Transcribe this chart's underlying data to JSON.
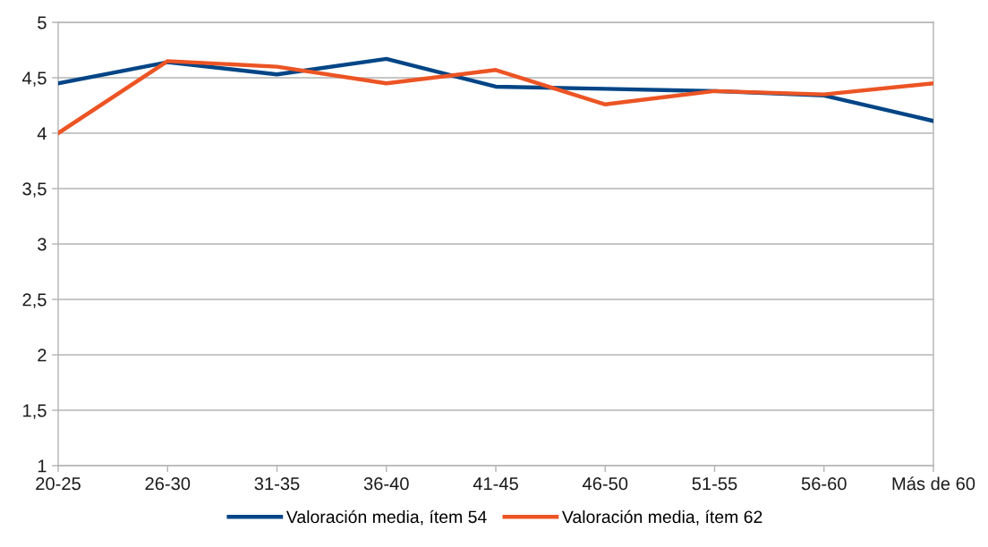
{
  "chart_data": {
    "type": "line",
    "categories": [
      "20-25",
      "26-30",
      "31-35",
      "36-40",
      "41-45",
      "46-50",
      "51-55",
      "56-60",
      "Más de 60"
    ],
    "series": [
      {
        "name": "Valoración media, ítem 54",
        "color": "#004586",
        "values": [
          4.45,
          4.64,
          4.53,
          4.67,
          4.42,
          4.4,
          4.38,
          4.34,
          4.11
        ]
      },
      {
        "name": "Valoración media, ítem 62",
        "color": "#ec5424",
        "values": [
          4.0,
          4.65,
          4.6,
          4.45,
          4.57,
          4.26,
          4.38,
          4.35,
          4.45
        ]
      }
    ],
    "ylim": [
      1,
      5
    ],
    "yticks": [
      1,
      {
        "value": 1.5,
        "label": "1,5"
      },
      2,
      {
        "value": 2.5,
        "label": "2,5"
      },
      3,
      {
        "value": 3.5,
        "label": "3,5"
      },
      4,
      {
        "value": 4.5,
        "label": "4,5"
      },
      5
    ],
    "grid": "y",
    "legend": "bottom",
    "marker": "none",
    "line_style": "solid"
  }
}
